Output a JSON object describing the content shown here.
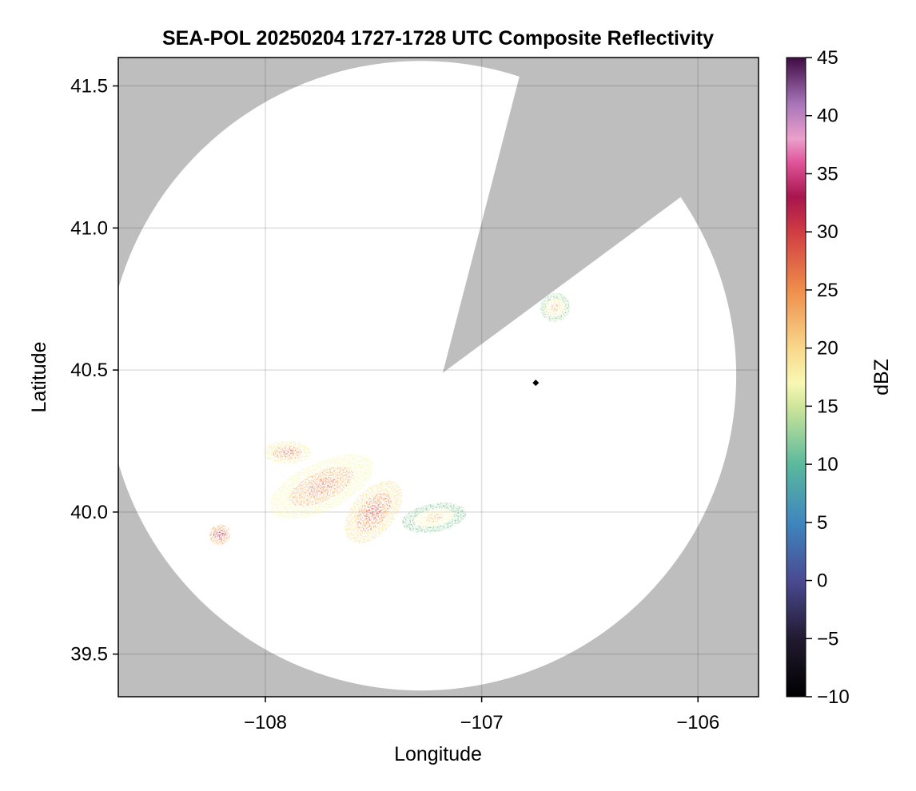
{
  "chart_data": {
    "type": "heatmap",
    "title": "SEA-POL 20250204 1727-1728 UTC Composite Reflectivity",
    "xlabel": "Longitude",
    "ylabel": "Latitude",
    "xlim": [
      -108.68,
      -105.72
    ],
    "ylim": [
      39.35,
      41.6
    ],
    "xticks": [
      -108,
      -107,
      -106
    ],
    "xtick_labels": [
      "−108",
      "−107",
      "−106"
    ],
    "yticks": [
      39.5,
      40.0,
      40.5,
      41.0,
      41.5
    ],
    "ytick_labels": [
      "39.5",
      "40.0",
      "40.5",
      "41.0",
      "41.5"
    ],
    "grid": true,
    "background_color": "#bebebe",
    "no_data_color": "#ffffff",
    "radar_site": {
      "lon": -107.28,
      "lat": 40.48
    },
    "radar_range_km": 123,
    "blocked_sector": {
      "center": {
        "lon": -107.18,
        "lat": 40.49
      },
      "edge_points": [
        {
          "lon": -106.83,
          "lat": 41.52
        },
        {
          "lon": -106.06,
          "lat": 41.12
        }
      ]
    },
    "marker": {
      "lon": -106.75,
      "lat": 40.455,
      "symbol": "diamond",
      "color": "#000000"
    },
    "echo_cells": [
      {
        "name": "cell-1",
        "lon": -107.9,
        "lat": 40.21,
        "rx": 0.11,
        "ry": 0.04,
        "rot": 0,
        "dbz": 22
      },
      {
        "name": "cell-2",
        "lon": -107.74,
        "lat": 40.09,
        "rx": 0.26,
        "ry": 0.085,
        "rot": -25,
        "dbz": 21
      },
      {
        "name": "cell-3",
        "lon": -107.5,
        "lat": 40.0,
        "rx": 0.17,
        "ry": 0.075,
        "rot": -50,
        "dbz": 23
      },
      {
        "name": "cell-4",
        "lon": -107.22,
        "lat": 39.98,
        "rx": 0.15,
        "ry": 0.05,
        "rot": -10,
        "dbz": 16
      },
      {
        "name": "cell-5",
        "lon": -108.21,
        "lat": 39.92,
        "rx": 0.05,
        "ry": 0.035,
        "rot": -20,
        "dbz": 27
      },
      {
        "name": "cell-6",
        "lon": -106.66,
        "lat": 40.72,
        "rx": 0.07,
        "ry": 0.05,
        "rot": -30,
        "dbz": 17
      }
    ],
    "colorbar": {
      "label": "dBZ",
      "min": -10,
      "max": 45,
      "ticks": [
        -10,
        -5,
        0,
        5,
        10,
        15,
        20,
        25,
        30,
        35,
        40,
        45
      ],
      "tick_labels": [
        "−10",
        "−5",
        "0",
        "5",
        "10",
        "15",
        "20",
        "25",
        "30",
        "35",
        "40",
        "45"
      ],
      "colormap": "black-blue-teal-yellow-orange-red-pink-purple",
      "stops": [
        {
          "v": -10,
          "c": "#000000"
        },
        {
          "v": -5,
          "c": "#221a30"
        },
        {
          "v": 0,
          "c": "#4a4a92"
        },
        {
          "v": 5,
          "c": "#3f86bf"
        },
        {
          "v": 10,
          "c": "#5ab99c"
        },
        {
          "v": 15,
          "c": "#cfe69a"
        },
        {
          "v": 17,
          "c": "#f8f8b3"
        },
        {
          "v": 20,
          "c": "#f9d78a"
        },
        {
          "v": 25,
          "c": "#ef8d4b"
        },
        {
          "v": 30,
          "c": "#d03c42"
        },
        {
          "v": 33,
          "c": "#a8154e"
        },
        {
          "v": 36,
          "c": "#e0559a"
        },
        {
          "v": 38,
          "c": "#eb9fcc"
        },
        {
          "v": 41,
          "c": "#a875b9"
        },
        {
          "v": 45,
          "c": "#3f0b45"
        }
      ]
    }
  }
}
